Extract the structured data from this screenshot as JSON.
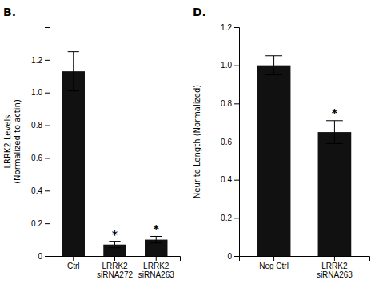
{
  "chart_data": [
    {
      "type": "bar",
      "title": "B.",
      "categories": [
        "Ctrl",
        "LRRK2\nsiRNA272",
        "LRRK2\nsiRNA263"
      ],
      "values": [
        1.13,
        0.07,
        0.1
      ],
      "errors": [
        0.12,
        0.02,
        0.02
      ],
      "color": "#111111",
      "y_label": "LRRK2 Levels\n(Normalized to actin)",
      "ylim": [
        0,
        1.4
      ],
      "yticks": [
        0,
        0.2,
        0.4,
        0.6,
        0.8,
        {
          "value": 1.0,
          "label": "1.0"
        },
        1.2
      ],
      "annotations": [
        {
          "text": "*",
          "x": "LRRK2\nsiRNA272",
          "y": 0.11
        },
        {
          "text": "*",
          "x": "LRRK2\nsiRNA263",
          "y": 0.14
        }
      ]
    },
    {
      "type": "bar",
      "title": "D.",
      "categories": [
        "Neg Ctrl",
        "LRRK2\nsiRNA263"
      ],
      "values": [
        1.0,
        0.65
      ],
      "errors": [
        0.05,
        0.06
      ],
      "color": "#111111",
      "y_label": "Neurite Length (Normalized)",
      "ylim": [
        0,
        1.2
      ],
      "yticks": [
        0,
        0.2,
        0.4,
        0.6,
        0.8,
        {
          "value": 1.0,
          "label": "1.0"
        },
        1.2
      ],
      "annotations": [
        {
          "text": "*",
          "x": "LRRK2\nsiRNA263",
          "y": 0.73
        }
      ]
    }
  ]
}
